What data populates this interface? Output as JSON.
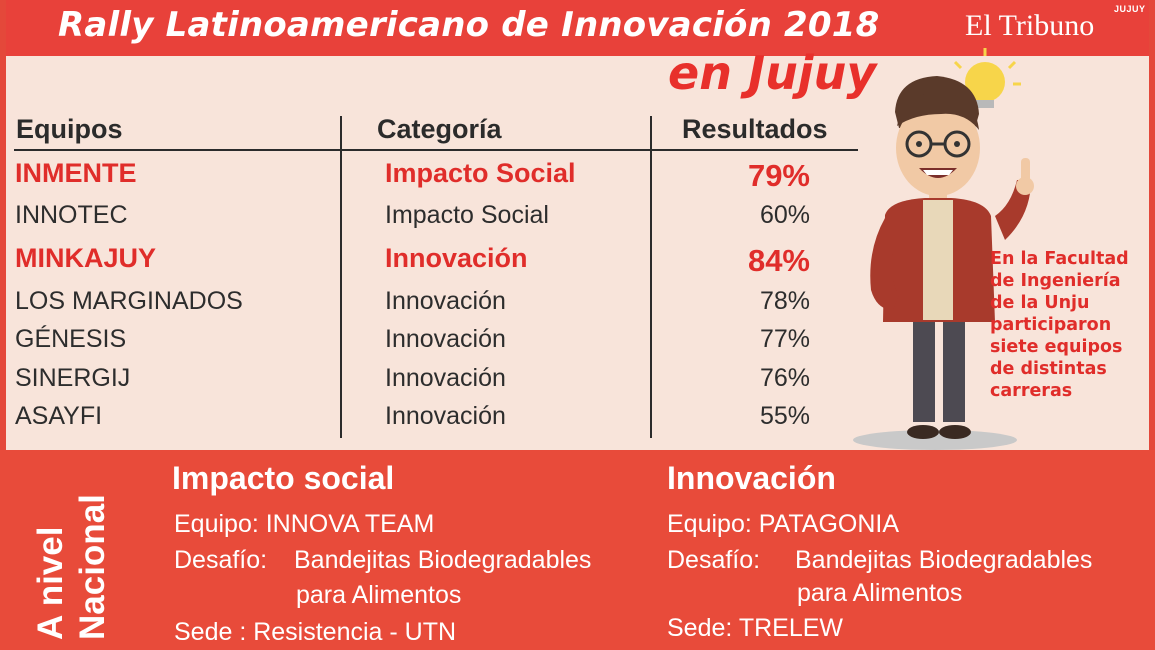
{
  "header": {
    "title": "Rally Latinoamericano de Innovación 2018",
    "subtitle": "en Jujuy",
    "logo_top": "JUJUY",
    "logo_main": "El Tribuno"
  },
  "table": {
    "headers": [
      "Equipos",
      "Categoría",
      "Resultados"
    ],
    "rows": [
      {
        "equipo": "INMENTE",
        "categoria": "Impacto Social",
        "resultado": "79%",
        "highlight": true
      },
      {
        "equipo": "INNOTEC",
        "categoria": "Impacto Social",
        "resultado": "60%",
        "highlight": false
      },
      {
        "equipo": "MINKAJUY",
        "categoria": "Innovación",
        "resultado": "84%",
        "highlight": true
      },
      {
        "equipo": "LOS MARGINADOS",
        "categoria": "Innovación",
        "resultado": "78%",
        "highlight": false
      },
      {
        "equipo": "GÉNESIS",
        "categoria": "Innovación",
        "resultado": "77%",
        "highlight": false
      },
      {
        "equipo": "SINERGIJ",
        "categoria": "Innovación",
        "resultado": "76%",
        "highlight": false
      },
      {
        "equipo": "ASAYFI",
        "categoria": "Innovación",
        "resultado": "55%",
        "highlight": false
      }
    ]
  },
  "note": {
    "lines": [
      "En la Facultad",
      "de Ingeniería",
      "de la Unju",
      "participaron",
      "siete equipos",
      "de distintas",
      "carreras"
    ]
  },
  "national": {
    "label_lines": [
      "A nivel",
      "Nacional"
    ],
    "impacto": {
      "title": "Impacto social",
      "equipo": "Equipo: INNOVA TEAM",
      "desafio_label": "Desafío:",
      "desafio_1": "Bandejitas Biodegradables",
      "desafio_2": "para Alimentos",
      "sede": "Sede : Resistencia - UTN"
    },
    "innovacion": {
      "title": "Innovación",
      "equipo": "Equipo:  PATAGONIA",
      "desafio_label": "Desafío:",
      "desafio_1": "Bandejitas Biodegradables",
      "desafio_2": "para Alimentos",
      "sede": "Sede: TRELEW"
    }
  },
  "colors": {
    "accent_red": "#e8413a",
    "highlight_text": "#e02d2a",
    "background": "#f8e4da"
  },
  "icons": [
    "lightbulb-icon",
    "cartoon-student-illustration"
  ]
}
